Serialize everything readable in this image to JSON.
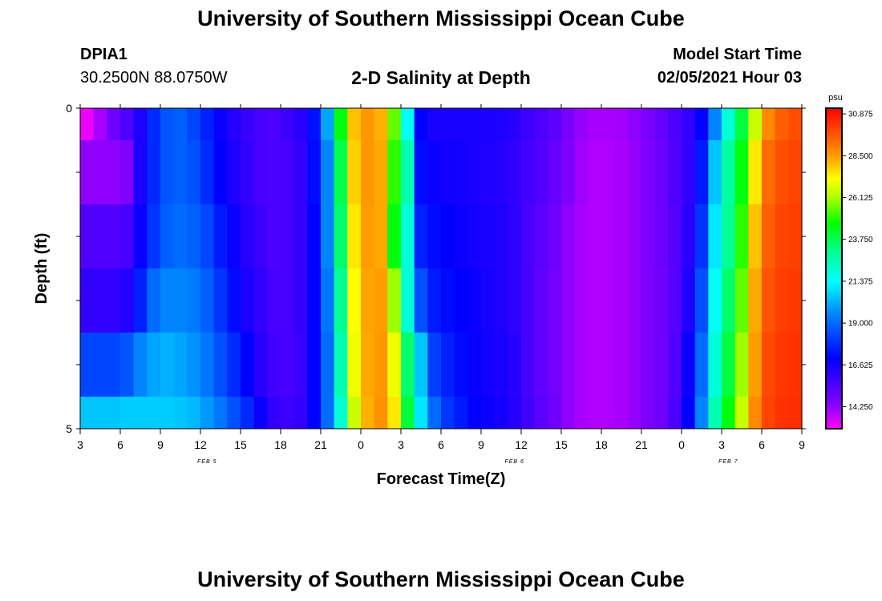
{
  "header": {
    "title": "University of Southern Mississippi Ocean Cube",
    "station": "DPIA1",
    "coords": "30.2500N 88.0750W",
    "subtitle": "2-D Salinity at Depth",
    "model_start_label": "Model Start Time",
    "model_start_value": "02/05/2021 Hour 03"
  },
  "footer": {
    "title": "University of Southern Mississippi Ocean Cube"
  },
  "chart_data": {
    "type": "heatmap",
    "title": "2-D Salinity at Depth",
    "xlabel": "Forecast Time(Z)",
    "ylabel": "Depth (ft)",
    "x_tick_labels": [
      "3",
      "6",
      "9",
      "12",
      "15",
      "18",
      "21",
      "0",
      "3",
      "6",
      "9",
      "12",
      "15",
      "18",
      "21",
      "0",
      "3",
      "6",
      "9"
    ],
    "date_labels": [
      {
        "label": "FEB 5",
        "hours": 9.5
      },
      {
        "label": "FEB 6",
        "hours": 32.5
      },
      {
        "label": "FEB 7",
        "hours": 48.5
      }
    ],
    "xlim_hours": [
      0,
      54
    ],
    "y_tick_labels": [
      "0",
      "5"
    ],
    "ylim": [
      0,
      5
    ],
    "colorbar": {
      "unit": "psu",
      "min": 13.0,
      "max": 31.2,
      "ticks": [
        "30.875",
        "28.500",
        "26.125",
        "23.750",
        "21.375",
        "19.000",
        "16.625",
        "14.250"
      ],
      "tick_values": [
        30.875,
        28.5,
        26.125,
        23.75,
        21.375,
        19.0,
        16.625,
        14.25
      ]
    },
    "layers_depth_bounds": [
      [
        0,
        0.5
      ],
      [
        0.5,
        1.5
      ],
      [
        1.5,
        2.5
      ],
      [
        2.5,
        3.5
      ],
      [
        3.5,
        4.5
      ],
      [
        4.5,
        5
      ]
    ],
    "column_hours": [
      0,
      1,
      2,
      3,
      4,
      5,
      6,
      7,
      8,
      9,
      10,
      11,
      12,
      13,
      14,
      15,
      16,
      17,
      18,
      19,
      20,
      21,
      22,
      23,
      24,
      25,
      26,
      27,
      28,
      29,
      30,
      31,
      32,
      33,
      34,
      35,
      36,
      37,
      38,
      39,
      40,
      41,
      42,
      43,
      44,
      45,
      46,
      47,
      48,
      49,
      50,
      51,
      52,
      53
    ],
    "salinity": [
      [
        13.2,
        14.0,
        14.8,
        15.5,
        16.4,
        17.8,
        18.6,
        18.8,
        18.3,
        17.6,
        16.8,
        16.3,
        15.9,
        15.6,
        15.5,
        15.8,
        16.2,
        17.3,
        20.0,
        24.5,
        28.0,
        28.6,
        28.2,
        25.5,
        21.5,
        17.0,
        16.5,
        16.5,
        16.5,
        16.5,
        16.5,
        16.4,
        16.2,
        15.8,
        15.5,
        15.2,
        14.6,
        14.2,
        14.0,
        14.0,
        14.1,
        14.3,
        14.6,
        15.0,
        15.5,
        16.0,
        17.0,
        19.5,
        22.0,
        24.0,
        26.5,
        28.8,
        29.5,
        29.8
      ],
      [
        14.3,
        14.3,
        14.3,
        14.5,
        16.5,
        17.8,
        18.6,
        18.8,
        18.5,
        17.8,
        17.0,
        16.4,
        16.0,
        15.6,
        15.5,
        15.6,
        16.0,
        17.2,
        19.5,
        23.8,
        27.8,
        28.6,
        28.3,
        25.0,
        22.5,
        17.2,
        16.8,
        16.7,
        16.6,
        16.5,
        16.4,
        16.3,
        16.1,
        15.7,
        15.4,
        15.0,
        14.5,
        14.1,
        13.9,
        13.9,
        14.0,
        14.2,
        14.5,
        14.9,
        15.4,
        16.0,
        17.5,
        20.5,
        22.8,
        24.5,
        27.5,
        29.3,
        29.8,
        30.0
      ],
      [
        15.4,
        15.4,
        15.4,
        15.6,
        16.8,
        18.0,
        18.8,
        19.0,
        18.8,
        18.3,
        17.5,
        16.8,
        16.2,
        15.8,
        15.5,
        15.6,
        16.0,
        17.0,
        19.5,
        23.5,
        27.5,
        28.5,
        28.3,
        24.5,
        22.0,
        17.6,
        17.2,
        17.0,
        16.8,
        16.6,
        16.5,
        16.4,
        16.1,
        15.6,
        15.2,
        14.8,
        14.3,
        14.0,
        13.9,
        13.9,
        14.0,
        14.2,
        14.5,
        14.9,
        15.3,
        16.2,
        18.0,
        21.0,
        23.0,
        25.0,
        28.0,
        29.5,
        30.0,
        30.1
      ],
      [
        16.0,
        16.0,
        16.0,
        16.3,
        17.6,
        19.0,
        19.5,
        19.5,
        19.3,
        18.8,
        18.0,
        17.2,
        16.5,
        16.0,
        15.6,
        15.6,
        16.0,
        17.0,
        19.2,
        23.0,
        27.2,
        28.4,
        28.5,
        26.0,
        22.0,
        18.5,
        17.5,
        17.2,
        17.0,
        16.8,
        16.6,
        16.4,
        16.1,
        15.6,
        15.1,
        14.7,
        14.3,
        14.0,
        13.9,
        13.9,
        14.0,
        14.2,
        14.5,
        14.8,
        15.3,
        16.4,
        18.5,
        21.5,
        23.5,
        25.5,
        28.3,
        29.7,
        30.1,
        30.2
      ],
      [
        18.3,
        18.3,
        18.3,
        18.6,
        19.5,
        20.0,
        20.2,
        20.0,
        19.7,
        19.2,
        18.5,
        17.8,
        17.0,
        16.2,
        15.7,
        15.6,
        15.9,
        17.0,
        19.0,
        22.5,
        27.0,
        28.3,
        28.6,
        27.0,
        23.5,
        20.5,
        18.2,
        17.6,
        17.2,
        16.9,
        16.7,
        16.5,
        16.2,
        15.6,
        15.1,
        14.7,
        14.3,
        14.0,
        13.9,
        13.9,
        14.0,
        14.2,
        14.5,
        14.8,
        15.4,
        16.8,
        19.0,
        22.0,
        24.0,
        26.0,
        28.5,
        29.9,
        30.2,
        30.3
      ],
      [
        20.5,
        20.5,
        20.5,
        20.6,
        20.6,
        20.6,
        20.6,
        20.5,
        20.3,
        19.8,
        19.2,
        18.5,
        17.8,
        16.8,
        16.0,
        15.8,
        16.0,
        17.0,
        19.0,
        22.0,
        26.5,
        28.2,
        28.7,
        27.5,
        24.0,
        21.0,
        19.0,
        18.0,
        17.5,
        17.0,
        16.8,
        16.6,
        16.3,
        15.7,
        15.2,
        14.8,
        14.3,
        14.0,
        13.9,
        13.9,
        14.0,
        14.2,
        14.5,
        14.8,
        15.5,
        17.0,
        19.5,
        22.5,
        24.5,
        26.5,
        28.8,
        30.0,
        30.3,
        30.4
      ]
    ]
  }
}
